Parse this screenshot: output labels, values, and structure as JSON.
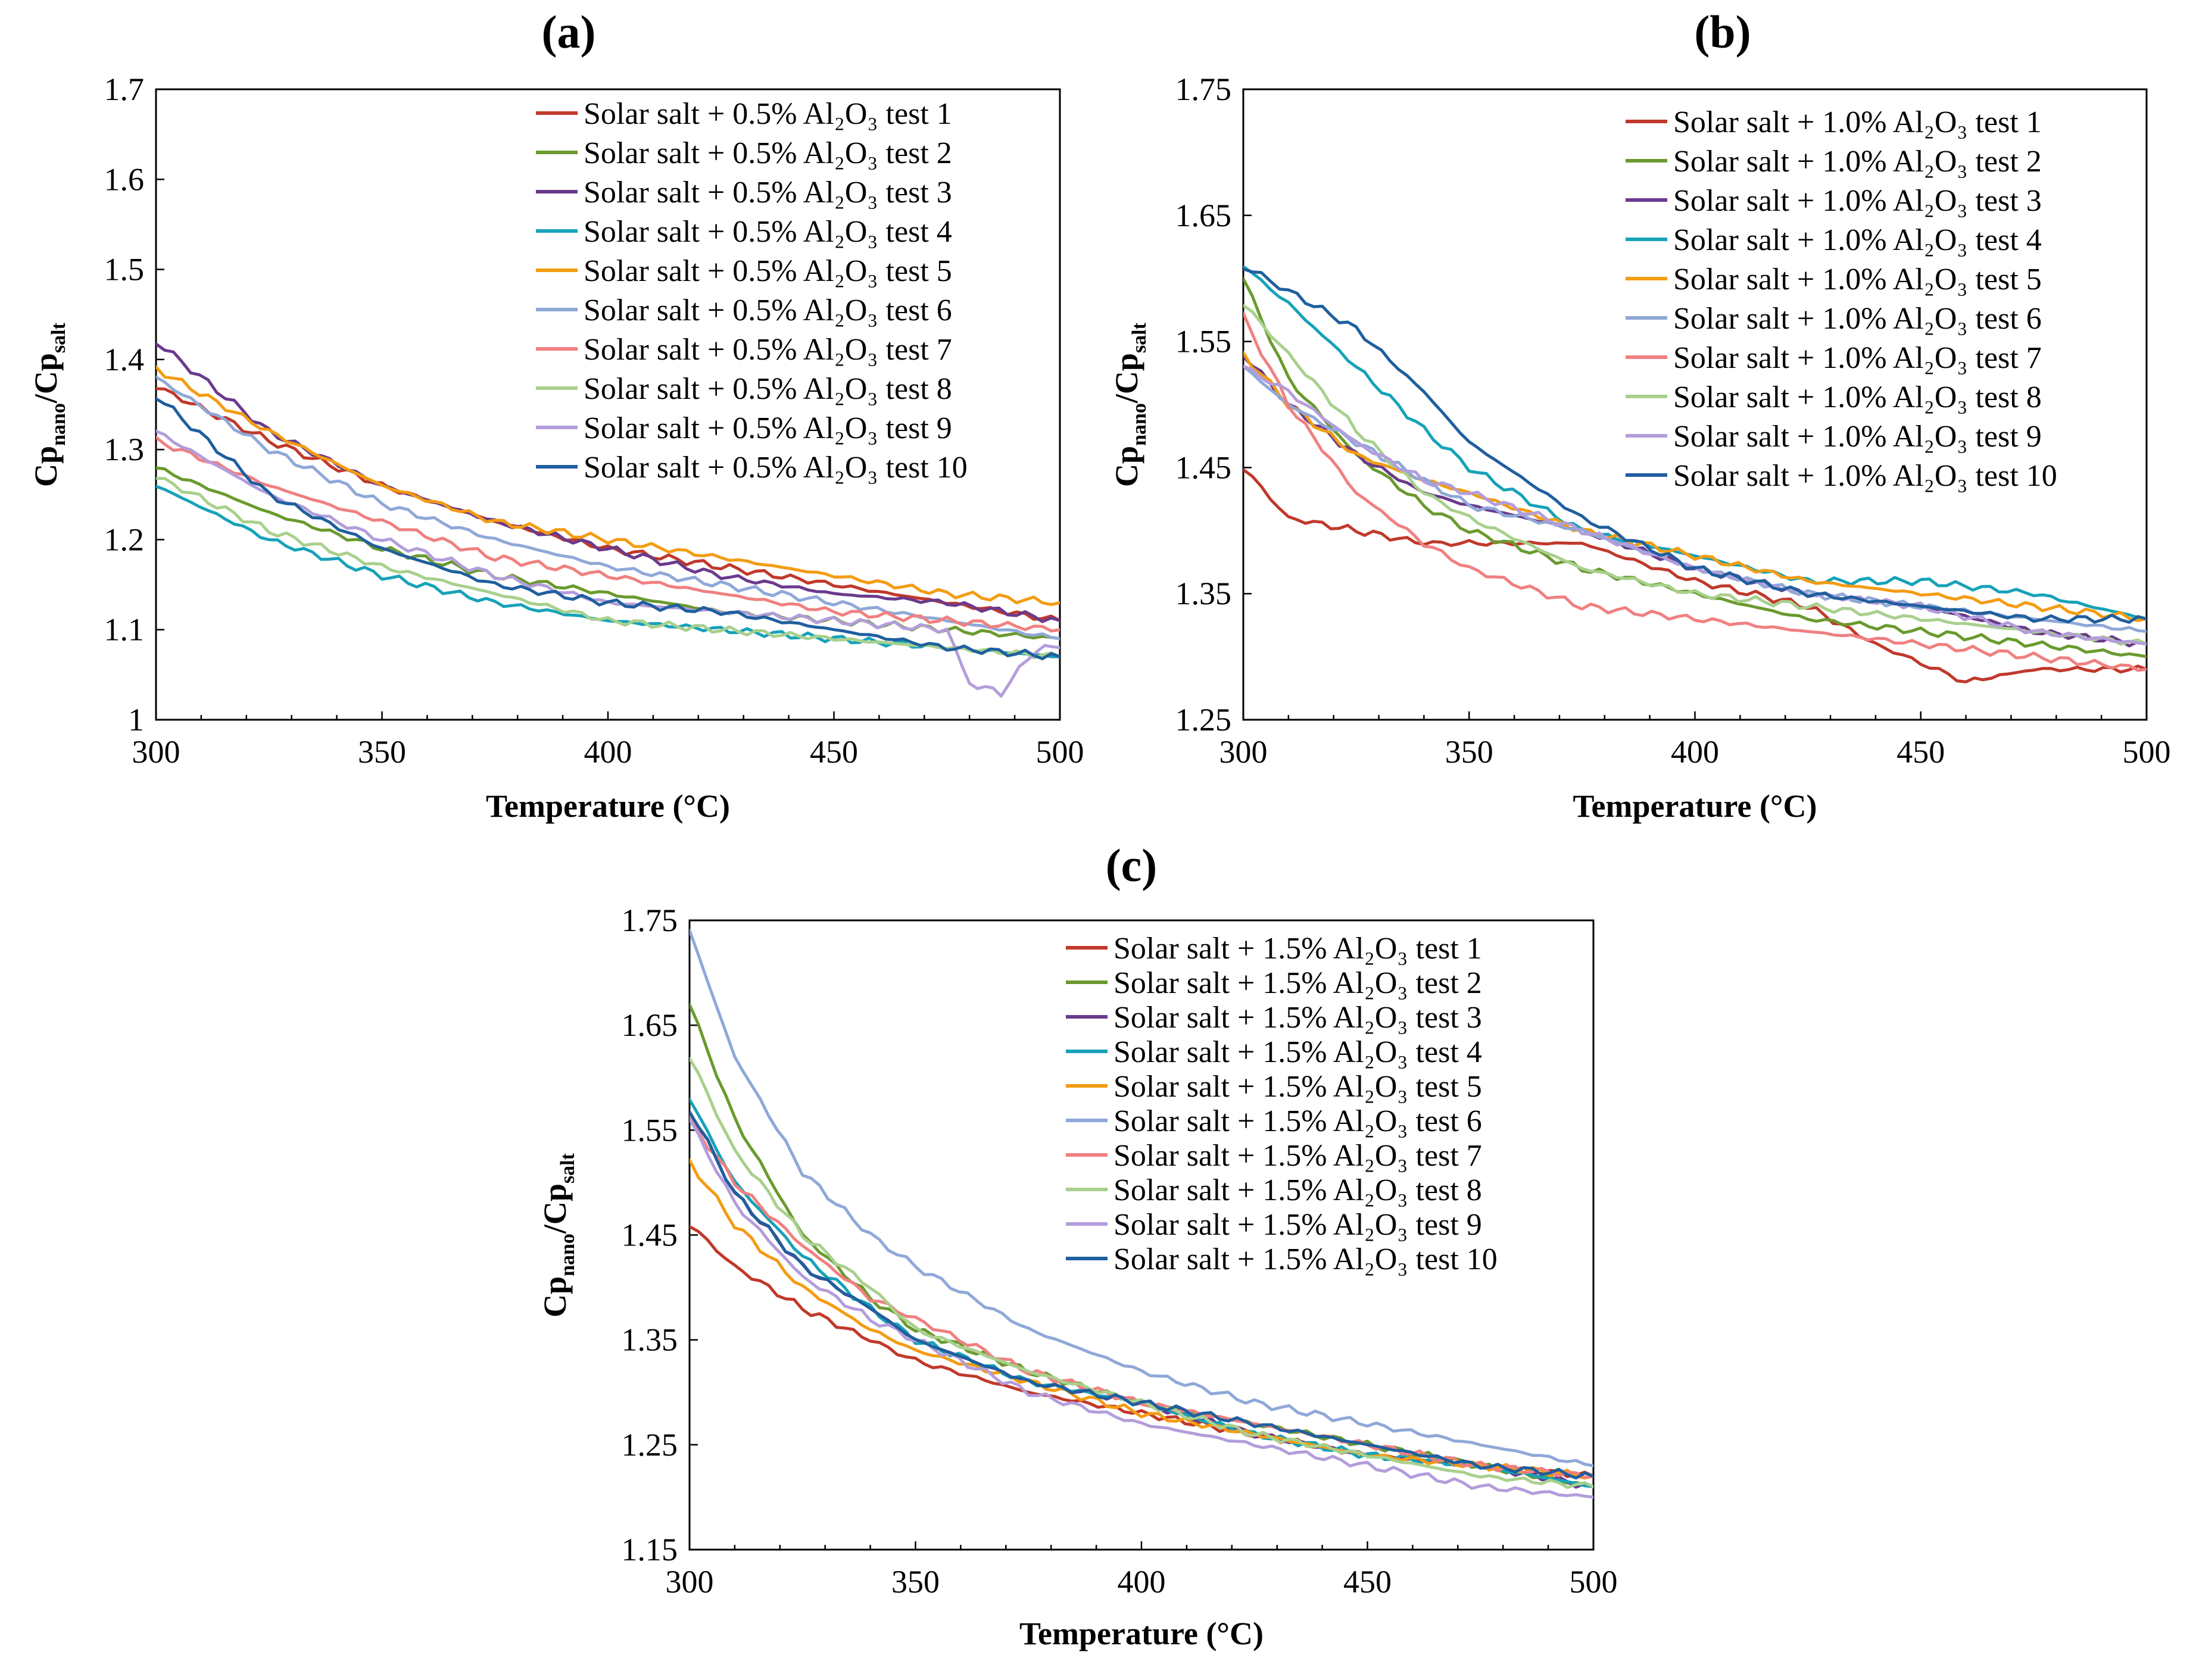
{
  "chart_data": [
    {
      "panel": "(a)",
      "type": "line",
      "xlabel": "Temperature (°C)",
      "ylabel": "Cp_nano/Cp_salt",
      "xlim": [
        300,
        500
      ],
      "ylim": [
        1.0,
        1.7
      ],
      "xticks": [
        "300",
        "350",
        "400",
        "450",
        "500"
      ],
      "yticks": [
        "1",
        "1.1",
        "1.2",
        "1.3",
        "1.4",
        "1.5",
        "1.6",
        "1.7"
      ],
      "legend_position": "top-right",
      "series": [
        {
          "name": "Solar salt + 0.5% Al₂O₃ test 1",
          "color": "#c0392b",
          "x": [
            300,
            325,
            350,
            375,
            400,
            425,
            450,
            475,
            500
          ],
          "values": [
            1.37,
            1.31,
            1.26,
            1.22,
            1.19,
            1.17,
            1.15,
            1.13,
            1.11
          ]
        },
        {
          "name": "Solar salt + 0.5% Al₂O₃ test 2",
          "color": "#6a9a2e",
          "x": [
            300,
            325,
            350,
            375,
            400,
            425,
            450,
            475,
            500
          ],
          "values": [
            1.28,
            1.23,
            1.19,
            1.16,
            1.14,
            1.12,
            1.11,
            1.1,
            1.09
          ]
        },
        {
          "name": "Solar salt + 0.5% Al₂O₃ test 3",
          "color": "#6b3a8c",
          "x": [
            300,
            325,
            350,
            375,
            400,
            425,
            450,
            475,
            500
          ],
          "values": [
            1.42,
            1.32,
            1.26,
            1.22,
            1.19,
            1.16,
            1.14,
            1.13,
            1.11
          ]
        },
        {
          "name": "Solar salt + 0.5% Al₂O₃ test 4",
          "color": "#17a2b8",
          "x": [
            300,
            325,
            350,
            375,
            400,
            425,
            450,
            475,
            500
          ],
          "values": [
            1.26,
            1.2,
            1.16,
            1.13,
            1.11,
            1.1,
            1.09,
            1.08,
            1.07
          ]
        },
        {
          "name": "Solar salt + 0.5% Al₂O₃ test 5",
          "color": "#f39c12",
          "x": [
            300,
            325,
            350,
            375,
            400,
            425,
            450,
            475,
            500
          ],
          "values": [
            1.39,
            1.32,
            1.26,
            1.22,
            1.2,
            1.18,
            1.16,
            1.14,
            1.13
          ]
        },
        {
          "name": "Solar salt + 0.5% Al₂O₃ test 6",
          "color": "#8fa8d8",
          "x": [
            300,
            325,
            350,
            375,
            400,
            425,
            450,
            475,
            500
          ],
          "values": [
            1.38,
            1.3,
            1.24,
            1.2,
            1.17,
            1.15,
            1.13,
            1.11,
            1.09
          ]
        },
        {
          "name": "Solar salt + 0.5% Al₂O₃ test 7",
          "color": "#f08080",
          "x": [
            300,
            325,
            350,
            375,
            400,
            425,
            450,
            475,
            500
          ],
          "values": [
            1.31,
            1.26,
            1.22,
            1.18,
            1.16,
            1.14,
            1.12,
            1.11,
            1.1
          ]
        },
        {
          "name": "Solar salt + 0.5% Al₂O₃ test 8",
          "color": "#a8d08d",
          "x": [
            300,
            325,
            350,
            375,
            400,
            425,
            450,
            475,
            500
          ],
          "values": [
            1.27,
            1.21,
            1.17,
            1.14,
            1.11,
            1.1,
            1.09,
            1.08,
            1.07
          ]
        },
        {
          "name": "Solar salt + 0.5% Al₂O₃ test 9",
          "color": "#b39ddb",
          "x": [
            300,
            325,
            350,
            375,
            400,
            425,
            450,
            475,
            480,
            487,
            495,
            500
          ],
          "values": [
            1.32,
            1.25,
            1.2,
            1.16,
            1.13,
            1.12,
            1.11,
            1.1,
            1.04,
            1.03,
            1.08,
            1.08
          ]
        },
        {
          "name": "Solar salt + 0.5% Al₂O₃ test 10",
          "color": "#1f5f9e",
          "x": [
            300,
            325,
            350,
            375,
            400,
            425,
            450,
            475,
            500
          ],
          "values": [
            1.36,
            1.25,
            1.19,
            1.15,
            1.13,
            1.12,
            1.1,
            1.08,
            1.07
          ]
        }
      ]
    },
    {
      "panel": "(b)",
      "type": "line",
      "xlabel": "Temperature (°C)",
      "ylabel": "Cp_nano/Cp_salt",
      "xlim": [
        300,
        500
      ],
      "ylim": [
        1.25,
        1.75
      ],
      "xticks": [
        "300",
        "350",
        "400",
        "450",
        "500"
      ],
      "yticks": [
        "1.25",
        "1.35",
        "1.45",
        "1.55",
        "1.65",
        "1.75"
      ],
      "legend_position": "top-right",
      "series": [
        {
          "name": "Solar salt + 1.0% Al₂O₃ test 1",
          "color": "#c0392b",
          "x": [
            300,
            310,
            325,
            340,
            350,
            375,
            400,
            425,
            440,
            460,
            475,
            500
          ],
          "values": [
            1.45,
            1.41,
            1.4,
            1.39,
            1.39,
            1.39,
            1.36,
            1.34,
            1.31,
            1.28,
            1.29,
            1.29
          ]
        },
        {
          "name": "Solar salt + 1.0% Al₂O₃ test 2",
          "color": "#6a9a2e",
          "x": [
            300,
            310,
            325,
            340,
            350,
            375,
            400,
            425,
            450,
            475,
            500
          ],
          "values": [
            1.6,
            1.52,
            1.46,
            1.42,
            1.4,
            1.37,
            1.35,
            1.33,
            1.32,
            1.31,
            1.3
          ]
        },
        {
          "name": "Solar salt + 1.0% Al₂O₃ test 3",
          "color": "#6b3a8c",
          "x": [
            300,
            310,
            325,
            340,
            350,
            375,
            400,
            425,
            450,
            475,
            500
          ],
          "values": [
            1.54,
            1.5,
            1.46,
            1.43,
            1.42,
            1.4,
            1.37,
            1.35,
            1.34,
            1.32,
            1.31
          ]
        },
        {
          "name": "Solar salt + 1.0% Al₂O₃ test 4",
          "color": "#17a2b8",
          "x": [
            300,
            310,
            325,
            340,
            350,
            375,
            400,
            425,
            450,
            475,
            500
          ],
          "values": [
            1.61,
            1.58,
            1.53,
            1.48,
            1.45,
            1.4,
            1.38,
            1.36,
            1.36,
            1.35,
            1.33
          ]
        },
        {
          "name": "Solar salt + 1.0% Al₂O₃ test 5",
          "color": "#f39c12",
          "x": [
            300,
            310,
            325,
            340,
            350,
            375,
            400,
            425,
            450,
            475,
            500
          ],
          "values": [
            1.54,
            1.5,
            1.46,
            1.44,
            1.43,
            1.4,
            1.38,
            1.36,
            1.35,
            1.34,
            1.33
          ]
        },
        {
          "name": "Solar salt + 1.0% Al₂O₃ test 6",
          "color": "#8fa8d8",
          "x": [
            300,
            310,
            325,
            340,
            350,
            375,
            400,
            425,
            450,
            475,
            500
          ],
          "values": [
            1.53,
            1.5,
            1.47,
            1.44,
            1.42,
            1.4,
            1.37,
            1.35,
            1.34,
            1.33,
            1.32
          ]
        },
        {
          "name": "Solar salt + 1.0% Al₂O₃ test 7",
          "color": "#f08080",
          "x": [
            300,
            310,
            325,
            340,
            350,
            375,
            400,
            425,
            450,
            475,
            500
          ],
          "values": [
            1.57,
            1.5,
            1.43,
            1.39,
            1.37,
            1.34,
            1.33,
            1.32,
            1.31,
            1.3,
            1.29
          ]
        },
        {
          "name": "Solar salt + 1.0% Al₂O₃ test 8",
          "color": "#a8d08d",
          "x": [
            300,
            310,
            325,
            340,
            350,
            375,
            400,
            425,
            450,
            475,
            500
          ],
          "values": [
            1.58,
            1.54,
            1.48,
            1.43,
            1.41,
            1.37,
            1.35,
            1.34,
            1.33,
            1.32,
            1.31
          ]
        },
        {
          "name": "Solar salt + 1.0% Al₂O₃ test 9",
          "color": "#b39ddb",
          "x": [
            300,
            310,
            325,
            340,
            350,
            375,
            400,
            425,
            450,
            475,
            500
          ],
          "values": [
            1.53,
            1.51,
            1.47,
            1.44,
            1.43,
            1.4,
            1.37,
            1.35,
            1.34,
            1.32,
            1.31
          ]
        },
        {
          "name": "Solar salt + 1.0% Al₂O₃ test 10",
          "color": "#1f5f9e",
          "x": [
            300,
            310,
            325,
            340,
            350,
            375,
            400,
            425,
            450,
            475,
            500
          ],
          "values": [
            1.61,
            1.59,
            1.56,
            1.51,
            1.47,
            1.41,
            1.37,
            1.35,
            1.34,
            1.33,
            1.33
          ]
        }
      ]
    },
    {
      "panel": "(c)",
      "type": "line",
      "xlabel": "Temperature (°C)",
      "ylabel": "Cp_nano/Cp_salt",
      "xlim": [
        300,
        500
      ],
      "ylim": [
        1.15,
        1.75
      ],
      "xticks": [
        "300",
        "350",
        "400",
        "450",
        "500"
      ],
      "yticks": [
        "1.15",
        "1.25",
        "1.35",
        "1.45",
        "1.55",
        "1.65",
        "1.75"
      ],
      "legend_position": "top-right",
      "series": [
        {
          "name": "Solar salt + 1.5% Al₂O₃ test 1",
          "color": "#c0392b",
          "x": [
            300,
            310,
            325,
            340,
            350,
            375,
            400,
            425,
            450,
            475,
            500
          ],
          "values": [
            1.46,
            1.42,
            1.38,
            1.35,
            1.33,
            1.3,
            1.28,
            1.26,
            1.24,
            1.23,
            1.22
          ]
        },
        {
          "name": "Solar salt + 1.5% Al₂O₃ test 2",
          "color": "#6a9a2e",
          "x": [
            300,
            310,
            325,
            340,
            350,
            375,
            400,
            425,
            450,
            475,
            500
          ],
          "values": [
            1.67,
            1.56,
            1.45,
            1.39,
            1.36,
            1.32,
            1.29,
            1.27,
            1.25,
            1.23,
            1.21
          ]
        },
        {
          "name": "Solar salt + 1.5% Al₂O₃ test 3",
          "color": "#6b3a8c",
          "x": [
            300,
            310,
            325,
            340,
            350,
            375,
            400,
            425,
            450,
            475,
            500
          ],
          "values": [
            1.57,
            1.49,
            1.42,
            1.38,
            1.35,
            1.31,
            1.29,
            1.26,
            1.24,
            1.23,
            1.21
          ]
        },
        {
          "name": "Solar salt + 1.5% Al₂O₃ test 4",
          "color": "#17a2b8",
          "x": [
            300,
            310,
            325,
            340,
            350,
            375,
            400,
            425,
            450,
            475,
            500
          ],
          "values": [
            1.58,
            1.5,
            1.43,
            1.38,
            1.35,
            1.31,
            1.29,
            1.26,
            1.24,
            1.23,
            1.21
          ]
        },
        {
          "name": "Solar salt + 1.5% Al₂O₃ test 5",
          "color": "#f39c12",
          "x": [
            300,
            310,
            325,
            340,
            350,
            375,
            400,
            425,
            450,
            475,
            500
          ],
          "values": [
            1.52,
            1.46,
            1.4,
            1.36,
            1.34,
            1.31,
            1.28,
            1.26,
            1.24,
            1.23,
            1.22
          ]
        },
        {
          "name": "Solar salt + 1.5% Al₂O₃ test 6",
          "color": "#8fa8d8",
          "x": [
            300,
            310,
            325,
            340,
            350,
            375,
            400,
            425,
            450,
            475,
            500
          ],
          "values": [
            1.74,
            1.62,
            1.51,
            1.45,
            1.42,
            1.36,
            1.32,
            1.29,
            1.27,
            1.25,
            1.23
          ]
        },
        {
          "name": "Solar salt + 1.5% Al₂O₃ test 7",
          "color": "#f08080",
          "x": [
            300,
            310,
            325,
            340,
            350,
            375,
            400,
            425,
            450,
            475,
            500
          ],
          "values": [
            1.56,
            1.5,
            1.44,
            1.39,
            1.37,
            1.32,
            1.29,
            1.27,
            1.25,
            1.23,
            1.22
          ]
        },
        {
          "name": "Solar salt + 1.5% Al₂O₃ test 8",
          "color": "#a8d08d",
          "x": [
            300,
            310,
            325,
            340,
            350,
            375,
            400,
            425,
            450,
            475,
            500
          ],
          "values": [
            1.62,
            1.53,
            1.45,
            1.4,
            1.36,
            1.32,
            1.29,
            1.26,
            1.24,
            1.22,
            1.21
          ]
        },
        {
          "name": "Solar salt + 1.5% Al₂O₃ test 9",
          "color": "#b39ddb",
          "x": [
            300,
            310,
            325,
            340,
            350,
            375,
            400,
            425,
            450,
            475,
            500
          ],
          "values": [
            1.56,
            1.48,
            1.41,
            1.37,
            1.35,
            1.3,
            1.27,
            1.25,
            1.23,
            1.21,
            1.2
          ]
        },
        {
          "name": "Solar salt + 1.5% Al₂O₃ test 10",
          "color": "#1f5f9e",
          "x": [
            300,
            310,
            325,
            340,
            350,
            375,
            400,
            425,
            450,
            475,
            500
          ],
          "values": [
            1.57,
            1.49,
            1.42,
            1.38,
            1.35,
            1.31,
            1.29,
            1.27,
            1.25,
            1.23,
            1.22
          ]
        }
      ]
    }
  ]
}
